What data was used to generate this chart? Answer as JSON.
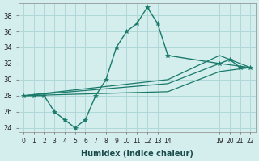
{
  "xlabel": "Humidex (Indice chaleur)",
  "ylabel": "",
  "bg_color": "#d4eeee",
  "grid_color": "#b0d8d8",
  "line_color": "#1a7a6a",
  "xticks": [
    0,
    1,
    2,
    3,
    4,
    5,
    6,
    7,
    8,
    9,
    10,
    11,
    12,
    13,
    14,
    19,
    20,
    21,
    22
  ],
  "yticks": [
    24,
    26,
    28,
    30,
    32,
    34,
    36,
    38
  ],
  "xlim": [
    -0.5,
    22.5
  ],
  "ylim": [
    23.5,
    39.5
  ],
  "series1_x": [
    0,
    1,
    2,
    3,
    4,
    5,
    6,
    7,
    8,
    9,
    10,
    11,
    12,
    13,
    14,
    19,
    20,
    21,
    22
  ],
  "series1_y": [
    28,
    28,
    28,
    26,
    25,
    24,
    25,
    28,
    30,
    34,
    36,
    37,
    39,
    37,
    33,
    32,
    32.5,
    31.5,
    31.5
  ],
  "series2_x": [
    0,
    14,
    19,
    22
  ],
  "series2_y": [
    28,
    30,
    33,
    31.5
  ],
  "series3_x": [
    0,
    14,
    19,
    22
  ],
  "series3_y": [
    28,
    29.5,
    32,
    31.5
  ],
  "series4_x": [
    0,
    14,
    19,
    22
  ],
  "series4_y": [
    28,
    28.5,
    31,
    31.5
  ]
}
